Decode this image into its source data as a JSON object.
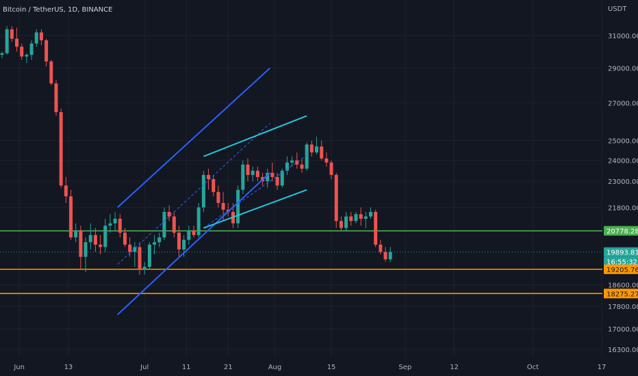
{
  "header": {
    "symbol_line": "Bitcoin / TetherUS, 1D, BINANCE"
  },
  "chart_data": {
    "type": "candlestick",
    "currency_label": "USDT",
    "colors": {
      "up": "#26a69a",
      "down": "#ef5350",
      "background": "#131722"
    },
    "y_ticks": [
      "31000.00",
      "29000.00",
      "27000.00",
      "25000.00",
      "24000.00",
      "23000.00",
      "21800.00",
      "18600.00",
      "17800.00",
      "17000.00",
      "16300.00"
    ],
    "x_ticks": [
      "Jun",
      "13",
      "Jul",
      "11",
      "21",
      "Aug",
      "15",
      "Sep",
      "12",
      "Oct",
      "17"
    ],
    "price_badges": [
      {
        "value": "20778.28",
        "color": "#4caf50"
      },
      {
        "value": "19893.81",
        "color": "#26a69a"
      },
      {
        "value": "16:55:32",
        "color": "#26a69a"
      },
      {
        "value": "19205.76",
        "color": "#ff9800"
      },
      {
        "value": "18275.27",
        "color": "#ff9800"
      }
    ],
    "horizontal_levels": [
      {
        "price": 20778.28,
        "color": "#4caf50"
      },
      {
        "price": 19205.76,
        "color": "#ff9800"
      },
      {
        "price": 18275.27,
        "color": "#ff9800"
      }
    ],
    "current_price": 19893.81,
    "trendlines": [
      {
        "from": [
          23.5,
          21800
        ],
        "to": [
          54.5,
          29000
        ],
        "color": "#2962ff",
        "dash": false
      },
      {
        "from": [
          23.5,
          17500
        ],
        "to": [
          54.5,
          23400
        ],
        "color": "#2962ff",
        "dash": false
      },
      {
        "from": [
          23.5,
          19400
        ],
        "to": [
          54.5,
          25900
        ],
        "color": "#2962ff",
        "dash": true
      },
      {
        "from": [
          41,
          20900
        ],
        "to": [
          62,
          24250
        ],
        "color": "#2962ff",
        "dash": true
      },
      {
        "from": [
          41,
          24200
        ],
        "to": [
          62,
          26300
        ],
        "color": "#26c6da",
        "dash": false
      },
      {
        "from": [
          41,
          20900
        ],
        "to": [
          62,
          22600
        ],
        "color": "#26c6da",
        "dash": false
      }
    ],
    "candles": [
      [
        29800,
        30000,
        29600,
        29900
      ],
      [
        29900,
        31600,
        29800,
        31400
      ],
      [
        31400,
        31600,
        30600,
        30800
      ],
      [
        30800,
        31500,
        30000,
        30300
      ],
      [
        30300,
        30500,
        29500,
        29700
      ],
      [
        29700,
        29900,
        29300,
        29800
      ],
      [
        29800,
        30700,
        29500,
        30500
      ],
      [
        30500,
        31400,
        30300,
        31200
      ],
      [
        31200,
        31400,
        30400,
        30700
      ],
      [
        30700,
        30800,
        29100,
        29400
      ],
      [
        29400,
        29500,
        28000,
        28100
      ],
      [
        28100,
        28300,
        26300,
        26500
      ],
      [
        26500,
        26700,
        22700,
        22800
      ],
      [
        22800,
        23200,
        22000,
        22300
      ],
      [
        22300,
        22600,
        20400,
        20500
      ],
      [
        20500,
        21100,
        20300,
        20800
      ],
      [
        20800,
        21000,
        19200,
        19700
      ],
      [
        19700,
        20500,
        19100,
        20300
      ],
      [
        20300,
        21100,
        20000,
        20600
      ],
      [
        20600,
        20900,
        19900,
        20200
      ],
      [
        20200,
        20600,
        19800,
        20100
      ],
      [
        20100,
        21300,
        19900,
        21000
      ],
      [
        21000,
        21500,
        20700,
        21100
      ],
      [
        21100,
        21600,
        20800,
        21300
      ],
      [
        21300,
        21500,
        20500,
        20700
      ],
      [
        20700,
        20900,
        20100,
        20200
      ],
      [
        20200,
        20500,
        19700,
        19900
      ],
      [
        19900,
        20300,
        19300,
        20100
      ],
      [
        20100,
        20300,
        19000,
        19200
      ],
      [
        19200,
        19500,
        19000,
        19300
      ],
      [
        19300,
        20300,
        19200,
        20200
      ],
      [
        20200,
        20600,
        19800,
        20300
      ],
      [
        20300,
        20700,
        20100,
        20500
      ],
      [
        20500,
        21800,
        20400,
        21600
      ],
      [
        21600,
        21900,
        21200,
        21400
      ],
      [
        21400,
        21600,
        20500,
        20700
      ],
      [
        20700,
        21000,
        19700,
        20000
      ],
      [
        20000,
        20600,
        19700,
        20400
      ],
      [
        20400,
        21000,
        20200,
        20800
      ],
      [
        20800,
        21000,
        20500,
        20600
      ],
      [
        20600,
        22000,
        20500,
        21800
      ],
      [
        21800,
        23500,
        21600,
        23300
      ],
      [
        23300,
        23600,
        22600,
        23100
      ],
      [
        23100,
        23300,
        22300,
        22500
      ],
      [
        22500,
        22800,
        21800,
        22000
      ],
      [
        22000,
        22500,
        21200,
        21700
      ],
      [
        21700,
        22000,
        21400,
        21600
      ],
      [
        21600,
        22000,
        20900,
        21100
      ],
      [
        21100,
        22800,
        20900,
        22600
      ],
      [
        22600,
        24000,
        22400,
        23800
      ],
      [
        23800,
        24100,
        23000,
        23300
      ],
      [
        23300,
        23700,
        23000,
        23500
      ],
      [
        23500,
        23700,
        23000,
        23200
      ],
      [
        23200,
        23400,
        22800,
        23000
      ],
      [
        23000,
        23600,
        22700,
        23400
      ],
      [
        23400,
        23900,
        23000,
        23200
      ],
      [
        23200,
        23400,
        22600,
        22800
      ],
      [
        22800,
        23600,
        22700,
        23500
      ],
      [
        23500,
        24200,
        23300,
        23900
      ],
      [
        23900,
        24200,
        23700,
        24000
      ],
      [
        24000,
        24400,
        23600,
        23800
      ],
      [
        23800,
        24100,
        23400,
        23600
      ],
      [
        23600,
        24900,
        23500,
        24800
      ],
      [
        24800,
        25000,
        24200,
        24400
      ],
      [
        24400,
        25200,
        24300,
        24700
      ],
      [
        24700,
        25000,
        24000,
        24100
      ],
      [
        24100,
        24400,
        23700,
        23900
      ],
      [
        23900,
        24000,
        23100,
        23300
      ],
      [
        23300,
        23400,
        20900,
        21200
      ],
      [
        21200,
        21400,
        20800,
        20900
      ],
      [
        20900,
        21600,
        20800,
        21400
      ],
      [
        21400,
        21600,
        21000,
        21200
      ],
      [
        21200,
        21600,
        21100,
        21500
      ],
      [
        21500,
        21800,
        21000,
        21300
      ],
      [
        21300,
        21600,
        20900,
        21400
      ],
      [
        21400,
        21800,
        21300,
        21600
      ],
      [
        21600,
        21700,
        20100,
        20200
      ],
      [
        20200,
        20400,
        19800,
        19900
      ],
      [
        19900,
        20100,
        19500,
        19600
      ],
      [
        19600,
        20100,
        19500,
        19900
      ]
    ]
  }
}
